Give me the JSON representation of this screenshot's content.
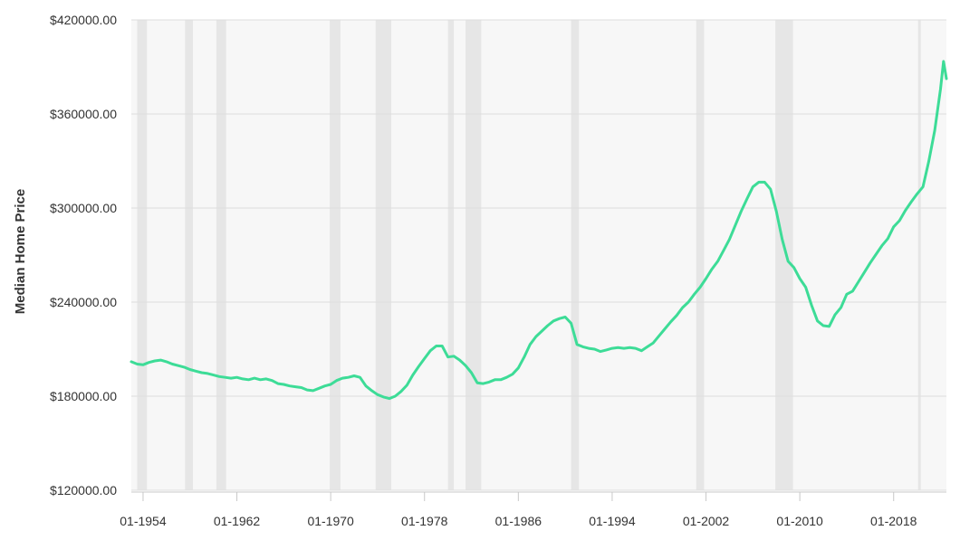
{
  "chart_data": {
    "type": "line",
    "title": "",
    "xlabel": "",
    "ylabel": "Median Home Price",
    "ylim": [
      120000,
      420000
    ],
    "xlim": [
      "1953-01",
      "2022-07"
    ],
    "y_ticks": [
      {
        "value": 120000,
        "label": "$120000.00"
      },
      {
        "value": 180000,
        "label": "$180000.00"
      },
      {
        "value": 240000,
        "label": "$240000.00"
      },
      {
        "value": 300000,
        "label": "$300000.00"
      },
      {
        "value": 360000,
        "label": "$360000.00"
      },
      {
        "value": 420000,
        "label": "$420000.00"
      }
    ],
    "x_ticks": [
      {
        "value": "1954-01",
        "label": "01-1954"
      },
      {
        "value": "1962-01",
        "label": "01-1962"
      },
      {
        "value": "1970-01",
        "label": "01-1970"
      },
      {
        "value": "1978-01",
        "label": "01-1978"
      },
      {
        "value": "1986-01",
        "label": "01-1986"
      },
      {
        "value": "1994-01",
        "label": "01-1994"
      },
      {
        "value": "2002-01",
        "label": "01-2002"
      },
      {
        "value": "2010-01",
        "label": "01-2010"
      },
      {
        "value": "2018-01",
        "label": "01-2018"
      }
    ],
    "grid": true,
    "recessions": [
      {
        "start": "1953-07",
        "end": "1954-05"
      },
      {
        "start": "1957-08",
        "end": "1958-04"
      },
      {
        "start": "1960-04",
        "end": "1961-02"
      },
      {
        "start": "1969-12",
        "end": "1970-11"
      },
      {
        "start": "1973-11",
        "end": "1975-03"
      },
      {
        "start": "1980-01",
        "end": "1980-07"
      },
      {
        "start": "1981-07",
        "end": "1982-11"
      },
      {
        "start": "1990-07",
        "end": "1991-03"
      },
      {
        "start": "2001-03",
        "end": "2001-11"
      },
      {
        "start": "2007-12",
        "end": "2009-06"
      },
      {
        "start": "2020-02",
        "end": "2020-04"
      }
    ],
    "series": [
      {
        "color": "#3ddc97",
        "points": [
          [
            "1953-01",
            202000
          ],
          [
            "1953-07",
            200500
          ],
          [
            "1954-01",
            200000
          ],
          [
            "1954-07",
            201500
          ],
          [
            "1955-01",
            202500
          ],
          [
            "1955-07",
            203000
          ],
          [
            "1956-01",
            202000
          ],
          [
            "1956-07",
            200500
          ],
          [
            "1957-01",
            199500
          ],
          [
            "1957-07",
            198500
          ],
          [
            "1958-01",
            197000
          ],
          [
            "1958-07",
            196000
          ],
          [
            "1959-01",
            195000
          ],
          [
            "1959-07",
            194500
          ],
          [
            "1960-01",
            193500
          ],
          [
            "1960-07",
            192500
          ],
          [
            "1961-01",
            192000
          ],
          [
            "1961-07",
            191500
          ],
          [
            "1962-01",
            192000
          ],
          [
            "1962-07",
            191000
          ],
          [
            "1963-01",
            190500
          ],
          [
            "1963-07",
            191500
          ],
          [
            "1964-01",
            190500
          ],
          [
            "1964-07",
            191000
          ],
          [
            "1965-01",
            190000
          ],
          [
            "1965-07",
            188000
          ],
          [
            "1966-01",
            187500
          ],
          [
            "1966-07",
            186500
          ],
          [
            "1967-01",
            186000
          ],
          [
            "1967-07",
            185500
          ],
          [
            "1968-01",
            184000
          ],
          [
            "1968-07",
            183500
          ],
          [
            "1969-01",
            185000
          ],
          [
            "1969-07",
            186500
          ],
          [
            "1970-01",
            187500
          ],
          [
            "1970-07",
            190000
          ],
          [
            "1971-01",
            191500
          ],
          [
            "1971-07",
            192000
          ],
          [
            "1972-01",
            193000
          ],
          [
            "1972-07",
            192000
          ],
          [
            "1973-01",
            186500
          ],
          [
            "1973-07",
            183500
          ],
          [
            "1974-01",
            181000
          ],
          [
            "1974-07",
            179500
          ],
          [
            "1975-01",
            178500
          ],
          [
            "1975-07",
            180000
          ],
          [
            "1976-01",
            183000
          ],
          [
            "1976-07",
            187000
          ],
          [
            "1977-01",
            193500
          ],
          [
            "1977-07",
            199000
          ],
          [
            "1978-01",
            204000
          ],
          [
            "1978-07",
            209000
          ],
          [
            "1979-01",
            212000
          ],
          [
            "1979-07",
            212000
          ],
          [
            "1980-01",
            205000
          ],
          [
            "1980-07",
            205500
          ],
          [
            "1981-01",
            203000
          ],
          [
            "1981-07",
            199500
          ],
          [
            "1982-01",
            195000
          ],
          [
            "1982-07",
            188500
          ],
          [
            "1983-01",
            188000
          ],
          [
            "1983-07",
            189000
          ],
          [
            "1984-01",
            190500
          ],
          [
            "1984-07",
            190500
          ],
          [
            "1985-01",
            192000
          ],
          [
            "1985-07",
            194000
          ],
          [
            "1986-01",
            198000
          ],
          [
            "1986-07",
            205000
          ],
          [
            "1987-01",
            213000
          ],
          [
            "1987-07",
            218000
          ],
          [
            "1988-01",
            221500
          ],
          [
            "1988-07",
            225000
          ],
          [
            "1989-01",
            228000
          ],
          [
            "1989-07",
            229500
          ],
          [
            "1990-01",
            230500
          ],
          [
            "1990-07",
            226500
          ],
          [
            "1991-01",
            213000
          ],
          [
            "1991-07",
            211500
          ],
          [
            "1992-01",
            210500
          ],
          [
            "1992-07",
            210000
          ],
          [
            "1993-01",
            208500
          ],
          [
            "1993-07",
            209500
          ],
          [
            "1994-01",
            210500
          ],
          [
            "1994-07",
            211000
          ],
          [
            "1995-01",
            210500
          ],
          [
            "1995-07",
            211000
          ],
          [
            "1996-01",
            210500
          ],
          [
            "1996-07",
            209000
          ],
          [
            "1997-01",
            211500
          ],
          [
            "1997-07",
            214000
          ],
          [
            "1998-01",
            218500
          ],
          [
            "1998-07",
            223000
          ],
          [
            "1999-01",
            227500
          ],
          [
            "1999-07",
            231500
          ],
          [
            "2000-01",
            236500
          ],
          [
            "2000-07",
            240000
          ],
          [
            "2001-01",
            245000
          ],
          [
            "2001-07",
            249500
          ],
          [
            "2002-01",
            255000
          ],
          [
            "2002-07",
            261000
          ],
          [
            "2003-01",
            266000
          ],
          [
            "2003-07",
            273000
          ],
          [
            "2004-01",
            280000
          ],
          [
            "2004-07",
            289000
          ],
          [
            "2005-01",
            298000
          ],
          [
            "2005-07",
            306000
          ],
          [
            "2006-01",
            313500
          ],
          [
            "2006-07",
            316500
          ],
          [
            "2007-01",
            316500
          ],
          [
            "2007-07",
            312000
          ],
          [
            "2008-01",
            298000
          ],
          [
            "2008-07",
            280000
          ],
          [
            "2009-01",
            266000
          ],
          [
            "2009-07",
            262000
          ],
          [
            "2010-01",
            255000
          ],
          [
            "2010-07",
            249500
          ],
          [
            "2011-01",
            238000
          ],
          [
            "2011-07",
            228000
          ],
          [
            "2012-01",
            225000
          ],
          [
            "2012-07",
            224500
          ],
          [
            "2013-01",
            232000
          ],
          [
            "2013-07",
            236500
          ],
          [
            "2014-01",
            245000
          ],
          [
            "2014-07",
            247000
          ],
          [
            "2015-01",
            253000
          ],
          [
            "2015-07",
            259000
          ],
          [
            "2016-01",
            265000
          ],
          [
            "2016-07",
            270500
          ],
          [
            "2017-01",
            276000
          ],
          [
            "2017-07",
            280500
          ],
          [
            "2018-01",
            288000
          ],
          [
            "2018-07",
            292000
          ],
          [
            "2019-01",
            298500
          ],
          [
            "2019-07",
            304000
          ],
          [
            "2020-01",
            309000
          ],
          [
            "2020-07",
            313500
          ],
          [
            "2021-01",
            330000
          ],
          [
            "2021-07",
            349500
          ],
          [
            "2022-01",
            376000
          ],
          [
            "2022-04",
            393500
          ],
          [
            "2022-07",
            382500
          ]
        ]
      }
    ]
  }
}
